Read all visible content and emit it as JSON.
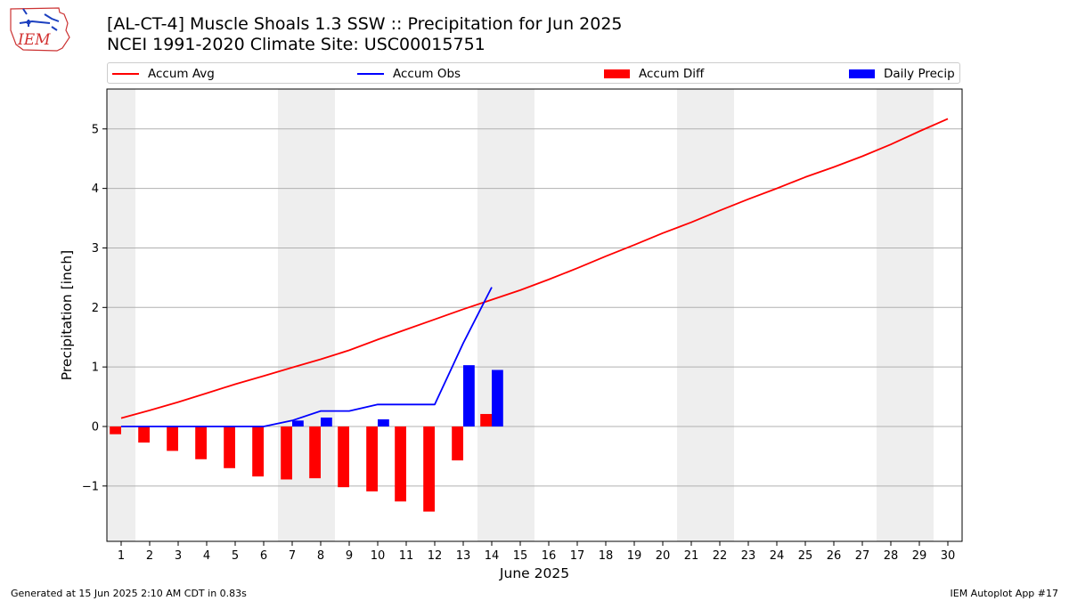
{
  "header": {
    "title_line1": "[AL-CT-4] Muscle Shoals 1.3 SSW :: Precipitation for Jun 2025",
    "title_line2": "NCEI 1991-2020 Climate Site: USC00015751",
    "logo_text": "IEM"
  },
  "legend": {
    "placement": "top, above plot, horizontal",
    "items": [
      {
        "label": "Accum Avg",
        "kind": "line",
        "color": "#ff0000"
      },
      {
        "label": "Accum Obs",
        "kind": "line",
        "color": "#0000ff"
      },
      {
        "label": "Accum Diff",
        "kind": "bar",
        "color": "#ff0000"
      },
      {
        "label": "Daily Precip",
        "kind": "bar",
        "color": "#0000ff"
      }
    ]
  },
  "footer": {
    "left": "Generated at 15 Jun 2025 2:10 AM CDT in 0.83s",
    "right": "IEM Autoplot App #17"
  },
  "chart_data": {
    "type": "bar",
    "title": "[AL-CT-4] Muscle Shoals 1.3 SSW :: Precipitation for Jun 2025",
    "subtitle": "NCEI 1991-2020 Climate Site: USC00015751",
    "xlabel": "June 2025",
    "ylabel": "Precipitation [inch]",
    "x": [
      1,
      2,
      3,
      4,
      5,
      6,
      7,
      8,
      9,
      10,
      11,
      12,
      13,
      14,
      15,
      16,
      17,
      18,
      19,
      20,
      21,
      22,
      23,
      24,
      25,
      26,
      27,
      28,
      29,
      30
    ],
    "xlim": [
      0.5,
      30.5
    ],
    "ylim": [
      -1.93,
      5.67
    ],
    "yticks": [
      -1,
      0,
      1,
      2,
      3,
      4,
      5
    ],
    "ytick_labels": [
      "−1",
      "0",
      "1",
      "2",
      "3",
      "4",
      "5"
    ],
    "grid": "horizontal",
    "weekend_shading": [
      [
        0.5,
        1.5
      ],
      [
        6.5,
        8.5
      ],
      [
        13.5,
        15.5
      ],
      [
        20.5,
        22.5
      ],
      [
        27.5,
        29.5
      ]
    ],
    "shading_color": "#eeeeee",
    "series": [
      {
        "name": "Accum Avg",
        "kind": "line",
        "color": "#ff0000",
        "x": [
          1,
          2,
          3,
          4,
          5,
          6,
          7,
          8,
          9,
          10,
          11,
          12,
          13,
          14,
          15,
          16,
          17,
          18,
          19,
          20,
          21,
          22,
          23,
          24,
          25,
          26,
          27,
          28,
          29,
          30
        ],
        "values": [
          0.14,
          0.27,
          0.41,
          0.56,
          0.71,
          0.85,
          0.99,
          1.13,
          1.28,
          1.46,
          1.63,
          1.8,
          1.97,
          2.13,
          2.29,
          2.47,
          2.66,
          2.86,
          3.05,
          3.25,
          3.43,
          3.63,
          3.82,
          4.0,
          4.19,
          4.36,
          4.54,
          4.74,
          4.96,
          5.17
        ]
      },
      {
        "name": "Accum Obs",
        "kind": "line",
        "color": "#0000ff",
        "x": [
          1,
          2,
          3,
          4,
          5,
          6,
          7,
          8,
          9,
          10,
          11,
          12,
          13,
          14
        ],
        "values": [
          0.0,
          0.0,
          0.0,
          0.0,
          0.0,
          0.0,
          0.1,
          0.26,
          0.26,
          0.37,
          0.37,
          0.37,
          1.4,
          2.34
        ]
      },
      {
        "name": "Accum Diff",
        "kind": "bar",
        "color": "#ff0000",
        "x": [
          1,
          2,
          3,
          4,
          5,
          6,
          7,
          8,
          9,
          10,
          11,
          12,
          13,
          14
        ],
        "values": [
          -0.13,
          -0.27,
          -0.41,
          -0.55,
          -0.7,
          -0.84,
          -0.89,
          -0.87,
          -1.02,
          -1.09,
          -1.26,
          -1.43,
          -0.57,
          0.21
        ]
      },
      {
        "name": "Daily Precip",
        "kind": "bar",
        "color": "#0000ff",
        "x": [
          1,
          2,
          3,
          4,
          5,
          6,
          7,
          8,
          9,
          10,
          11,
          12,
          13,
          14
        ],
        "values": [
          0.0,
          0.0,
          0.0,
          0.0,
          0.0,
          0.0,
          0.1,
          0.15,
          0.0,
          0.12,
          0.0,
          0.0,
          1.03,
          0.95
        ]
      }
    ]
  }
}
